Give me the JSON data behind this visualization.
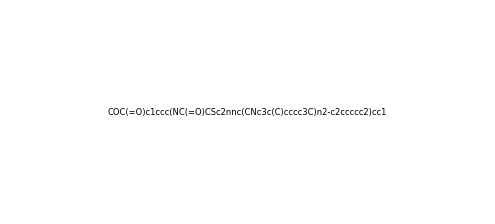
{
  "smiles": "COC(=O)c1ccc(NC(=O)CSc2nnc(CNc3c(C)cccc3C)n2-c2ccccc2)cc1",
  "title": "",
  "bg_color": "#ffffff",
  "line_color": "#000000",
  "figsize": [
    4.95,
    2.24
  ],
  "dpi": 100
}
